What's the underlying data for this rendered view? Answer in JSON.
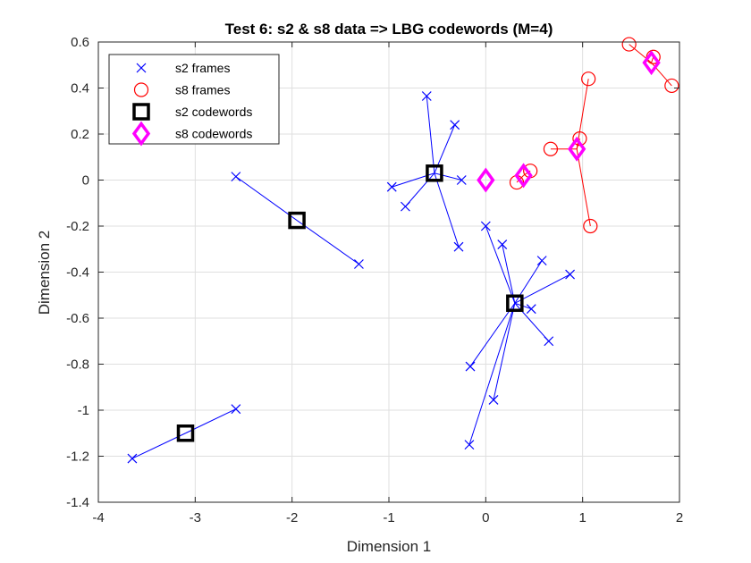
{
  "chart_data": {
    "type": "scatter",
    "title": "Test 6: s2 & s8 data => LBG codewords (M=4)",
    "xlabel": "Dimension 1",
    "ylabel": "Dimension 2",
    "xlim": [
      -4,
      2
    ],
    "ylim": [
      -1.4,
      0.6
    ],
    "xticks": [
      -4,
      -3,
      -2,
      -1,
      0,
      1,
      2
    ],
    "yticks": [
      -1.4,
      -1.2,
      -1,
      -0.8,
      -0.6,
      -0.4,
      -0.2,
      0,
      0.2,
      0.4,
      0.6
    ],
    "grid": true,
    "legend_position": "top-left",
    "colors": {
      "s2": "#0000ff",
      "s8": "#ff0000",
      "s2_codewords": "#000000",
      "s8_codewords": "#ff00ff"
    },
    "series": [
      {
        "name": "s2 frames",
        "marker": "x",
        "points": [
          {
            "x": -2.58,
            "y": 0.015,
            "cw": 1
          },
          {
            "x": -1.31,
            "y": -0.365,
            "cw": 1
          },
          {
            "x": -3.65,
            "y": -1.21,
            "cw": 0
          },
          {
            "x": -2.58,
            "y": -0.995,
            "cw": 0
          },
          {
            "x": -0.61,
            "y": 0.365,
            "cw": 2
          },
          {
            "x": -0.32,
            "y": 0.24,
            "cw": 2
          },
          {
            "x": -0.97,
            "y": -0.03,
            "cw": 2
          },
          {
            "x": -0.83,
            "y": -0.115,
            "cw": 2
          },
          {
            "x": -0.25,
            "y": 0.0,
            "cw": 2
          },
          {
            "x": -0.28,
            "y": -0.29,
            "cw": 2
          },
          {
            "x": 0.0,
            "y": -0.2,
            "cw": 3
          },
          {
            "x": 0.17,
            "y": -0.28,
            "cw": 3
          },
          {
            "x": 0.58,
            "y": -0.35,
            "cw": 3
          },
          {
            "x": 0.87,
            "y": -0.41,
            "cw": 3
          },
          {
            "x": 0.47,
            "y": -0.56,
            "cw": 3
          },
          {
            "x": 0.65,
            "y": -0.7,
            "cw": 3
          },
          {
            "x": -0.16,
            "y": -0.81,
            "cw": 3
          },
          {
            "x": 0.08,
            "y": -0.955,
            "cw": 3
          },
          {
            "x": -0.17,
            "y": -1.15,
            "cw": 3
          }
        ]
      },
      {
        "name": "s8 frames",
        "marker": "o",
        "points": [
          {
            "x": 1.48,
            "y": 0.59,
            "cw": 3
          },
          {
            "x": 1.73,
            "y": 0.535,
            "cw": 3
          },
          {
            "x": 1.92,
            "y": 0.41,
            "cw": 3
          },
          {
            "x": 1.06,
            "y": 0.44,
            "cw": 2
          },
          {
            "x": 0.97,
            "y": 0.18,
            "cw": 2
          },
          {
            "x": 0.67,
            "y": 0.135,
            "cw": 2
          },
          {
            "x": 1.08,
            "y": -0.2,
            "cw": 2
          },
          {
            "x": 0.46,
            "y": 0.04,
            "cw": 1
          },
          {
            "x": 0.32,
            "y": -0.01,
            "cw": 1
          }
        ]
      },
      {
        "name": "s2 codewords",
        "marker": "square",
        "points": [
          {
            "x": -3.1,
            "y": -1.1
          },
          {
            "x": -1.95,
            "y": -0.175
          },
          {
            "x": -0.53,
            "y": 0.03
          },
          {
            "x": 0.3,
            "y": -0.535
          }
        ]
      },
      {
        "name": "s8 codewords",
        "marker": "diamond",
        "points": [
          {
            "x": 0.0,
            "y": 0.0
          },
          {
            "x": 0.39,
            "y": 0.02
          },
          {
            "x": 0.94,
            "y": 0.135
          },
          {
            "x": 1.71,
            "y": 0.51
          }
        ]
      }
    ]
  }
}
